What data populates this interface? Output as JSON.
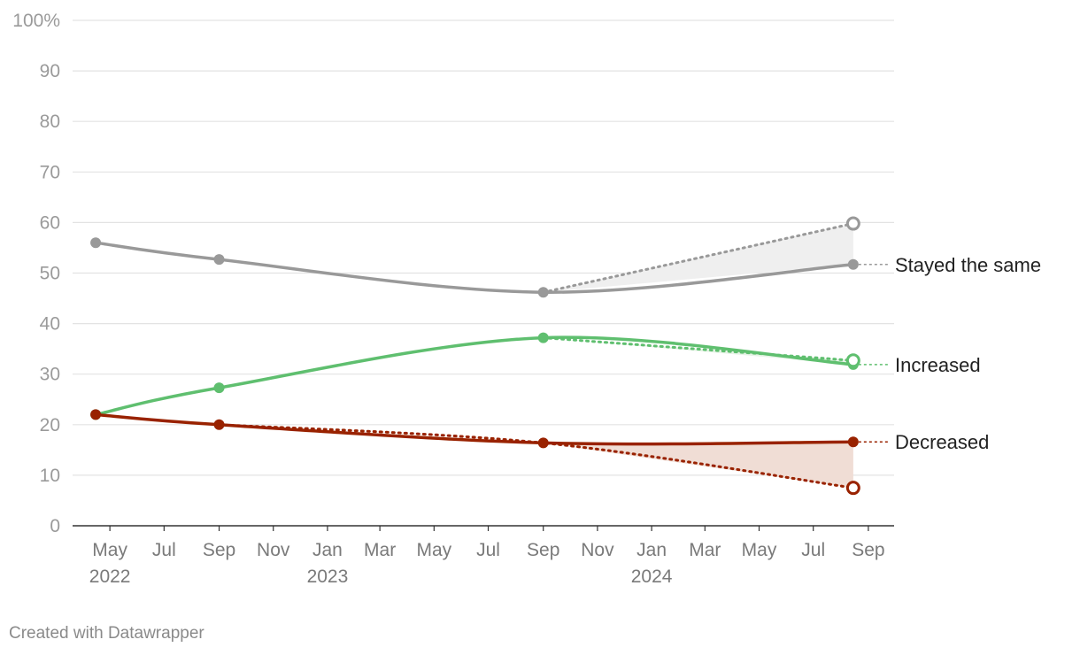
{
  "credit": "Created with Datawrapper",
  "chart_data": {
    "type": "line",
    "title": "",
    "xlabel": "",
    "ylabel": "",
    "ylim": [
      0,
      100
    ],
    "xlim": [
      "2022-03-20",
      "2024-09-30"
    ],
    "yticks": [
      "0",
      "10",
      "20",
      "30",
      "40",
      "50",
      "60",
      "70",
      "80",
      "90",
      "100%"
    ],
    "yticks_values": [
      0,
      10,
      20,
      30,
      40,
      50,
      60,
      70,
      80,
      90,
      100
    ],
    "xticks": [
      {
        "date": "2022-05-01",
        "label": "May",
        "year": "2022"
      },
      {
        "date": "2022-07-01",
        "label": "Jul",
        "year": ""
      },
      {
        "date": "2022-09-01",
        "label": "Sep",
        "year": ""
      },
      {
        "date": "2022-11-01",
        "label": "Nov",
        "year": ""
      },
      {
        "date": "2023-01-01",
        "label": "Jan",
        "year": "2023"
      },
      {
        "date": "2023-03-01",
        "label": "Mar",
        "year": ""
      },
      {
        "date": "2023-05-01",
        "label": "May",
        "year": ""
      },
      {
        "date": "2023-07-01",
        "label": "Jul",
        "year": ""
      },
      {
        "date": "2023-09-01",
        "label": "Sep",
        "year": ""
      },
      {
        "date": "2023-11-01",
        "label": "Nov",
        "year": ""
      },
      {
        "date": "2024-01-01",
        "label": "Jan",
        "year": "2024"
      },
      {
        "date": "2024-03-01",
        "label": "Mar",
        "year": ""
      },
      {
        "date": "2024-05-01",
        "label": "May",
        "year": ""
      },
      {
        "date": "2024-07-01",
        "label": "Jul",
        "year": ""
      },
      {
        "date": "2024-09-01",
        "label": "Sep",
        "year": ""
      }
    ],
    "grid": true,
    "series": [
      {
        "name": "Stayed the same",
        "color": "#999999",
        "fill": "#efefef",
        "solid": [
          [
            "2022-04-15",
            56
          ],
          [
            "2022-09-01",
            52.7
          ],
          [
            "2023-09-01",
            46.2
          ],
          [
            "2024-08-15",
            51.7
          ]
        ],
        "dotted": [
          [
            "2023-09-01",
            46.2
          ],
          [
            "2024-08-15",
            59.8
          ]
        ]
      },
      {
        "name": "Increased",
        "color": "#5fbf6f",
        "fill": "#e6f3e6",
        "solid": [
          [
            "2022-04-15",
            22
          ],
          [
            "2022-09-01",
            27.3
          ],
          [
            "2023-09-01",
            37.2
          ],
          [
            "2024-08-15",
            31.9
          ]
        ],
        "dotted": [
          [
            "2023-09-01",
            37.2
          ],
          [
            "2024-08-15",
            32.7
          ]
        ]
      },
      {
        "name": "Decreased",
        "color": "#992200",
        "fill": "#f0ddd5",
        "solid": [
          [
            "2022-04-15",
            22
          ],
          [
            "2022-09-01",
            20
          ],
          [
            "2023-09-01",
            16.4
          ],
          [
            "2024-08-15",
            16.6
          ]
        ],
        "dotted": [
          [
            "2022-09-01",
            20
          ],
          [
            "2023-09-01",
            16.4
          ],
          [
            "2024-08-15",
            7.5
          ]
        ]
      }
    ]
  }
}
